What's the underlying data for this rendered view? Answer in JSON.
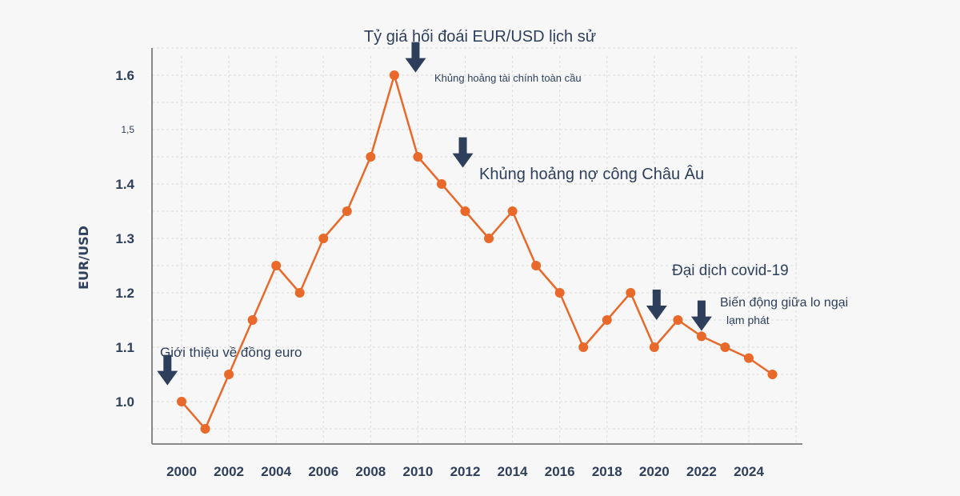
{
  "chart_data": {
    "type": "line",
    "title": "Tỷ giá hối đoái EUR/USD lịch sử",
    "xlabel": "",
    "ylabel": "EUR/USD",
    "xlim": [
      1999,
      2026
    ],
    "ylim": [
      0.92,
      1.66
    ],
    "x_ticks": [
      "2000",
      "2002",
      "2004",
      "2006",
      "2008",
      "2010",
      "2012",
      "2014",
      "2016",
      "2018",
      "2020",
      "2022",
      "2024"
    ],
    "y_ticks": [
      {
        "value": 1.0,
        "label": "1.0"
      },
      {
        "value": 1.1,
        "label": "1.1"
      },
      {
        "value": 1.2,
        "label": "1.2"
      },
      {
        "value": 1.3,
        "label": "1.3"
      },
      {
        "value": 1.4,
        "label": "1.4"
      },
      {
        "value": 1.5,
        "label": "1,5",
        "small": true
      },
      {
        "value": 1.6,
        "label": "1.6"
      }
    ],
    "grid": true,
    "series": [
      {
        "color": "#e8692a",
        "x": [
          2000,
          2001,
          2002,
          2003,
          2004,
          2005,
          2006,
          2007,
          2008,
          2009,
          2010,
          2011,
          2012,
          2013,
          2014,
          2015,
          2016,
          2017,
          2018,
          2019,
          2020,
          2021,
          2022,
          2023,
          2024,
          2025
        ],
        "values": [
          1.0,
          0.95,
          1.05,
          1.15,
          1.25,
          1.2,
          1.3,
          1.35,
          1.45,
          1.6,
          1.45,
          1.4,
          1.35,
          1.3,
          1.35,
          1.25,
          1.2,
          1.1,
          1.15,
          1.2,
          1.1,
          1.15,
          1.12,
          1.1,
          1.08,
          1.05
        ]
      }
    ],
    "annotations": [
      {
        "text": "Giới thiệu về đồng euro",
        "arrow_x": 1999.4,
        "arrow_y": 1.03
      },
      {
        "text": "Khủng hoảng tài chính toàn cầu",
        "arrow_x": 2009.9,
        "arrow_y": 1.605
      },
      {
        "text": "Khủng hoảng nợ công Châu Âu",
        "arrow_x": 2011.9,
        "arrow_y": 1.43
      },
      {
        "text": "Đại dịch covid-19",
        "arrow_x": 2020.1,
        "arrow_y": 1.15
      },
      {
        "text": "Biến động giữa lo ngại",
        "text2": "lạm phát",
        "arrow_x": 2022.0,
        "arrow_y": 1.13
      }
    ]
  },
  "colors": {
    "line": "#e8692a",
    "text": "#2e3f5c",
    "arrow": "#2e3f5c",
    "grid": "#dedede",
    "axis": "#888888"
  }
}
